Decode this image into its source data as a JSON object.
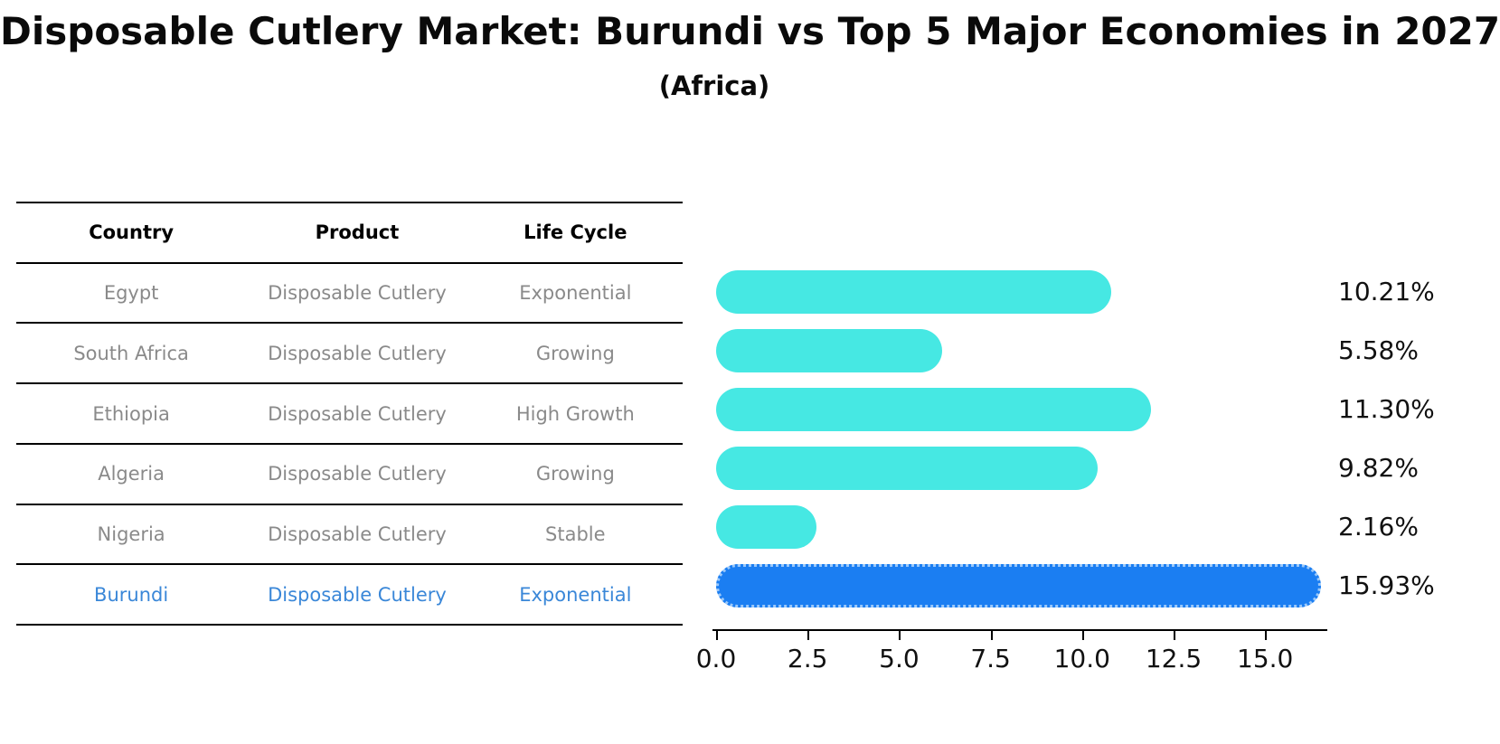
{
  "title": "Disposable Cutlery Market: Burundi vs Top 5 Major Economies in 2027",
  "subtitle": "(Africa)",
  "colors": {
    "bar": "#46e8e3",
    "highlight_bar": "#1b7ef2",
    "highlight_text": "#3a87d8",
    "row_text": "#8a8a8a",
    "table_line": "#000000",
    "value_text": "#111111"
  },
  "table": {
    "headers": [
      "Country",
      "Product",
      "Life Cycle"
    ],
    "rows": [
      {
        "country": "Egypt",
        "product": "Disposable Cutlery",
        "life_cycle": "Exponential",
        "highlight": false
      },
      {
        "country": "South Africa",
        "product": "Disposable Cutlery",
        "life_cycle": "Growing",
        "highlight": false
      },
      {
        "country": "Ethiopia",
        "product": "Disposable Cutlery",
        "life_cycle": "High Growth",
        "highlight": false
      },
      {
        "country": "Algeria",
        "product": "Disposable Cutlery",
        "life_cycle": "Growing",
        "highlight": false
      },
      {
        "country": "Nigeria",
        "product": "Disposable Cutlery",
        "life_cycle": "Stable",
        "highlight": false
      },
      {
        "country": "Burundi",
        "product": "Disposable Cutlery",
        "life_cycle": "Exponential",
        "highlight": true
      }
    ]
  },
  "chart_data": {
    "type": "bar",
    "orientation": "horizontal",
    "title": "Disposable Cutlery Market: Burundi vs Top 5 Major Economies in 2027 (Africa)",
    "categories": [
      "Egypt",
      "South Africa",
      "Ethiopia",
      "Algeria",
      "Nigeria",
      "Burundi"
    ],
    "values": [
      10.21,
      5.58,
      11.3,
      9.82,
      2.16,
      15.93
    ],
    "value_labels": [
      "10.21%",
      "5.58%",
      "11.30%",
      "9.82%",
      "2.16%",
      "15.93%"
    ],
    "highlight_index": 5,
    "x_tick_values": [
      0.0,
      2.5,
      5.0,
      7.5,
      10.0,
      12.5,
      15.0
    ],
    "x_tick_labels": [
      "0.0",
      "2.5",
      "5.0",
      "7.5",
      "10.0",
      "12.5",
      "15.0"
    ],
    "xlim": [
      0,
      16.7
    ],
    "xlabel": "",
    "ylabel": "",
    "grid": false,
    "legend": "none"
  }
}
